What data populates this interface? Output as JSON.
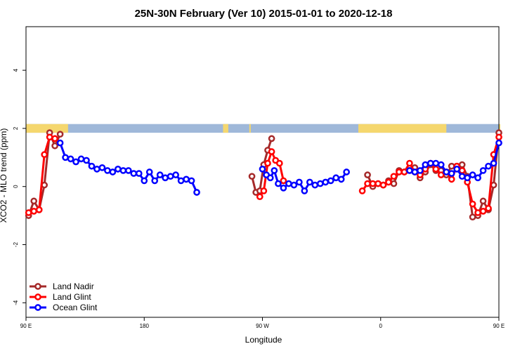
{
  "chart_data": {
    "type": "line",
    "title": "25N-30N February (Ver 10)   2015-01-01 to 2020-12-18",
    "xlabel": "Longitude",
    "ylabel": "XCO2 - MLO trend (ppm)",
    "xlim": [
      90,
      450
    ],
    "ylim": [
      -4.5,
      5.5
    ],
    "x_ticks": [
      {
        "value": 90,
        "label": "90 E"
      },
      {
        "value": 180,
        "label": "180"
      },
      {
        "value": 270,
        "label": "90 W"
      },
      {
        "value": 360,
        "label": "0"
      },
      {
        "value": 450,
        "label": "90 E"
      },
      {
        "value": 540,
        "label": "180"
      }
    ],
    "y_ticks": [
      {
        "value": -4,
        "label": "-4"
      },
      {
        "value": -2,
        "label": "-2"
      },
      {
        "value": 0,
        "label": "0"
      },
      {
        "value": 2,
        "label": "2"
      },
      {
        "value": 4,
        "label": "4"
      }
    ],
    "x_range": [
      90,
      540
    ],
    "grid": false,
    "legend_position": "bottom-left",
    "land_ocean_strip": {
      "y_range": [
        1.85,
        2.15
      ],
      "ocean_color": "#9fb8d9",
      "land_color": "#f5d76e",
      "land_intervals": [
        [
          90,
          122
        ],
        [
          240,
          244
        ],
        [
          260,
          260
        ],
        [
          343,
          410
        ],
        [
          450,
          482
        ]
      ]
    },
    "series": [
      {
        "name": "Land Nadir",
        "color": "#a52a2a",
        "segments": [
          [
            [
              92,
              -1.0
            ],
            [
              96,
              -0.5
            ],
            [
              100,
              -0.8
            ],
            [
              104,
              0.05
            ],
            [
              108,
              1.85
            ],
            [
              112,
              1.4
            ],
            [
              116,
              1.8
            ]
          ],
          [
            [
              262,
              0.35
            ],
            [
              265,
              -0.2
            ],
            [
              268,
              -0.15
            ],
            [
              271,
              0.75
            ],
            [
              274,
              1.25
            ],
            [
              277,
              1.65
            ]
          ],
          [
            [
              350,
              0.4
            ],
            [
              354,
              0.0
            ],
            [
              358,
              0.1
            ],
            [
              362,
              0.05
            ],
            [
              366,
              0.2
            ],
            [
              370,
              0.1
            ],
            [
              374,
              0.55
            ],
            [
              378,
              0.5
            ],
            [
              382,
              0.55
            ],
            [
              386,
              0.65
            ],
            [
              390,
              0.3
            ],
            [
              394,
              0.5
            ],
            [
              398,
              0.75
            ],
            [
              402,
              0.55
            ],
            [
              406,
              0.55
            ],
            [
              410,
              0.4
            ],
            [
              414,
              0.7
            ],
            [
              418,
              0.7
            ],
            [
              422,
              0.75
            ],
            [
              426,
              0.35
            ],
            [
              430,
              -1.05
            ],
            [
              434,
              -1.0
            ],
            [
              438,
              -0.5
            ],
            [
              442,
              -0.8
            ],
            [
              446,
              0.05
            ],
            [
              450,
              1.85
            ],
            [
              454,
              1.4
            ],
            [
              458,
              1.8
            ]
          ]
        ]
      },
      {
        "name": "Land Glint",
        "color": "#ff0000",
        "segments": [
          [
            [
              92,
              -0.9
            ],
            [
              96,
              -0.85
            ],
            [
              100,
              -0.8
            ],
            [
              104,
              1.1
            ],
            [
              108,
              1.7
            ],
            [
              112,
              1.65
            ]
          ],
          [
            [
              268,
              -0.35
            ],
            [
              271,
              -0.15
            ],
            [
              274,
              0.8
            ],
            [
              277,
              1.2
            ],
            [
              280,
              0.9
            ],
            [
              283,
              0.8
            ],
            [
              286,
              0.2
            ]
          ],
          [
            [
              346,
              -0.15
            ],
            [
              350,
              0.1
            ],
            [
              354,
              0.1
            ],
            [
              358,
              0.1
            ],
            [
              362,
              0.05
            ],
            [
              366,
              0.15
            ],
            [
              370,
              0.35
            ],
            [
              374,
              0.5
            ],
            [
              378,
              0.5
            ],
            [
              382,
              0.8
            ],
            [
              386,
              0.5
            ],
            [
              390,
              0.4
            ],
            [
              394,
              0.6
            ],
            [
              398,
              0.8
            ],
            [
              402,
              0.6
            ],
            [
              406,
              0.4
            ],
            [
              410,
              0.5
            ],
            [
              414,
              0.25
            ],
            [
              418,
              0.7
            ],
            [
              422,
              0.55
            ],
            [
              426,
              0.15
            ],
            [
              430,
              -0.6
            ],
            [
              434,
              -0.9
            ],
            [
              438,
              -0.85
            ],
            [
              442,
              -0.75
            ],
            [
              446,
              1.1
            ],
            [
              450,
              1.7
            ],
            [
              454,
              1.65
            ],
            [
              458,
              1.6
            ]
          ]
        ]
      },
      {
        "name": "Ocean Glint",
        "color": "#0000ff",
        "segments": [
          [
            [
              116,
              1.5
            ],
            [
              120,
              1.0
            ],
            [
              124,
              0.95
            ],
            [
              128,
              0.85
            ],
            [
              132,
              0.95
            ],
            [
              136,
              0.9
            ],
            [
              140,
              0.7
            ],
            [
              144,
              0.6
            ],
            [
              148,
              0.65
            ],
            [
              152,
              0.55
            ],
            [
              156,
              0.5
            ],
            [
              160,
              0.6
            ],
            [
              164,
              0.55
            ],
            [
              168,
              0.55
            ],
            [
              172,
              0.45
            ],
            [
              176,
              0.45
            ],
            [
              180,
              0.2
            ],
            [
              184,
              0.5
            ],
            [
              188,
              0.2
            ],
            [
              192,
              0.4
            ],
            [
              196,
              0.3
            ],
            [
              200,
              0.35
            ],
            [
              204,
              0.4
            ],
            [
              208,
              0.2
            ],
            [
              212,
              0.25
            ],
            [
              216,
              0.2
            ],
            [
              220,
              -0.2
            ]
          ],
          [
            [
              270,
              0.6
            ],
            [
              273,
              0.4
            ],
            [
              276,
              0.3
            ],
            [
              279,
              0.55
            ],
            [
              282,
              0.1
            ],
            [
              286,
              -0.05
            ],
            [
              290,
              0.1
            ],
            [
              294,
              0.05
            ],
            [
              298,
              0.15
            ],
            [
              302,
              -0.15
            ],
            [
              306,
              0.15
            ],
            [
              310,
              0.05
            ],
            [
              314,
              0.1
            ],
            [
              318,
              0.15
            ],
            [
              322,
              0.2
            ],
            [
              326,
              0.3
            ],
            [
              330,
              0.25
            ],
            [
              334,
              0.5
            ]
          ],
          [
            [
              382,
              0.55
            ],
            [
              386,
              0.5
            ],
            [
              390,
              0.55
            ],
            [
              394,
              0.75
            ],
            [
              398,
              0.8
            ],
            [
              402,
              0.8
            ],
            [
              406,
              0.75
            ],
            [
              410,
              0.5
            ],
            [
              414,
              0.45
            ],
            [
              418,
              0.6
            ],
            [
              422,
              0.35
            ],
            [
              426,
              0.3
            ],
            [
              430,
              0.4
            ],
            [
              434,
              0.3
            ],
            [
              438,
              0.55
            ],
            [
              442,
              0.7
            ],
            [
              446,
              0.8
            ],
            [
              450,
              1.5
            ],
            [
              454,
              1.55
            ],
            [
              458,
              1.0
            ],
            [
              462,
              0.95
            ],
            [
              466,
              0.9
            ],
            [
              470,
              0.95
            ],
            [
              474,
              0.9
            ],
            [
              478,
              0.7
            ],
            [
              482,
              0.65
            ],
            [
              486,
              0.7
            ],
            [
              490,
              0.55
            ],
            [
              494,
              0.5
            ],
            [
              498,
              0.6
            ]
          ]
        ]
      }
    ]
  }
}
